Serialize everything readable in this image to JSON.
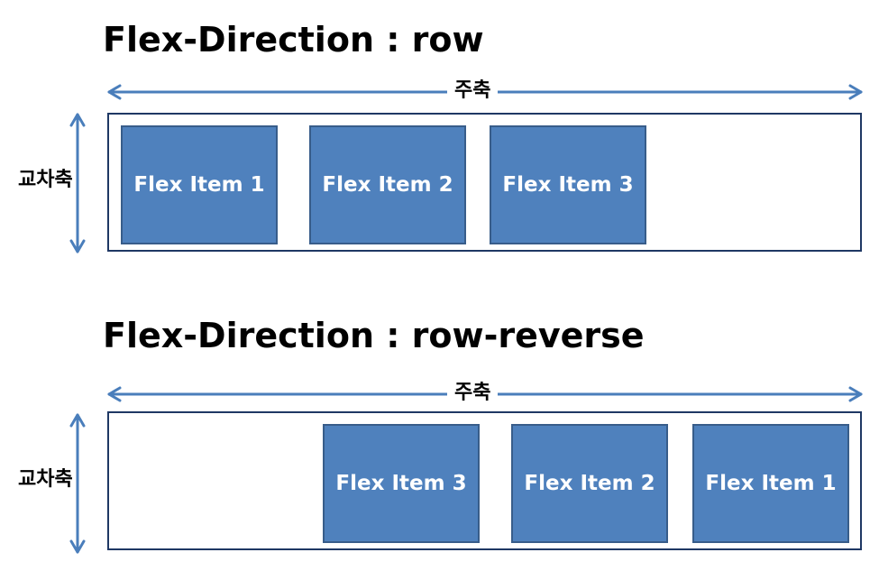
{
  "diagrams": [
    {
      "title": "Flex-Direction : row",
      "main_axis_label": "주축",
      "cross_axis_label": "교차축",
      "items": [
        "Flex Item 1",
        "Flex Item 2",
        "Flex Item 3"
      ]
    },
    {
      "title": "Flex-Direction : row-reverse",
      "main_axis_label": "주축",
      "cross_axis_label": "교차축",
      "items": [
        "Flex Item 3",
        "Flex Item 2",
        "Flex Item 1"
      ]
    }
  ],
  "colors": {
    "item_fill": "#4f81bd",
    "item_border": "#385d8a",
    "container_border": "#1f3864",
    "arrow": "#4a7ebb"
  }
}
